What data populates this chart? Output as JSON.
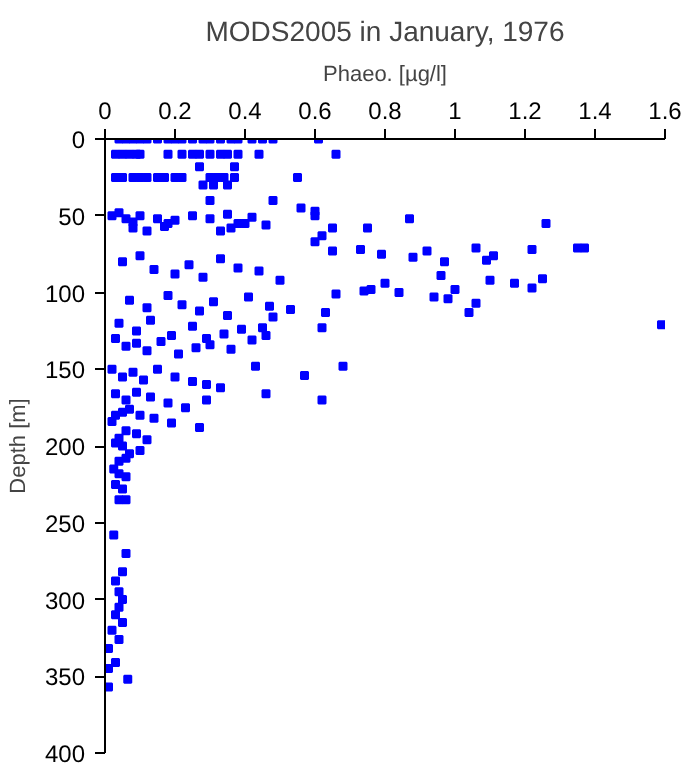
{
  "chart_data": {
    "type": "scatter",
    "title": "MODS2005 in January, 1976",
    "xlabel": "Phaeo. [µg/l]",
    "ylabel": "Depth [m]",
    "xlim": [
      0,
      1.6
    ],
    "xticks": [
      0,
      0.2,
      0.4,
      0.6,
      0.8,
      1,
      1.2,
      1.4,
      1.6
    ],
    "ylim": [
      400,
      0
    ],
    "yticks": [
      0,
      50,
      100,
      150,
      200,
      250,
      300,
      350,
      400
    ],
    "marker": "square",
    "series": [
      {
        "color": "#0000ff",
        "x": [
          0.04,
          0.06,
          0.08,
          0.1,
          0.12,
          0.15,
          0.18,
          0.2,
          0.22,
          0.25,
          0.28,
          0.3,
          0.33,
          0.36,
          0.38,
          0.42,
          0.45,
          0.48,
          0.61,
          0.03,
          0.05,
          0.07,
          0.09,
          0.1,
          0.18,
          0.22,
          0.25,
          0.27,
          0.3,
          0.33,
          0.35,
          0.38,
          0.44,
          0.66,
          0.03,
          0.05,
          0.08,
          0.1,
          0.12,
          0.15,
          0.17,
          0.2,
          0.22,
          0.3,
          0.32,
          0.34,
          0.37,
          0.55,
          0.27,
          0.37,
          0.28,
          0.31,
          0.35,
          0.02,
          0.04,
          0.06,
          0.08,
          0.1,
          0.15,
          0.18,
          0.2,
          0.25,
          0.3,
          0.35,
          0.38,
          0.42,
          0.46,
          0.56,
          0.6,
          0.08,
          0.12,
          0.17,
          0.33,
          0.36,
          0.4,
          0.3,
          0.48,
          0.65,
          0.75,
          0.87,
          1.26,
          0.6,
          0.62,
          0.6,
          0.65,
          0.73,
          0.79,
          0.88,
          0.92,
          0.97,
          1.06,
          1.09,
          1.11,
          1.22,
          1.35,
          1.37,
          0.96,
          0.8,
          0.84,
          1.0,
          1.1,
          1.17,
          1.22,
          1.25,
          0.66,
          0.74,
          0.76,
          0.94,
          0.98,
          1.06,
          1.04,
          1.59,
          0.63,
          0.05,
          0.1,
          0.14,
          0.2,
          0.24,
          0.28,
          0.33,
          0.38,
          0.44,
          0.5,
          0.07,
          0.12,
          0.18,
          0.22,
          0.27,
          0.31,
          0.35,
          0.41,
          0.47,
          0.53,
          0.04,
          0.09,
          0.13,
          0.19,
          0.25,
          0.29,
          0.34,
          0.39,
          0.45,
          0.62,
          0.46,
          0.42,
          0.48,
          0.03,
          0.06,
          0.09,
          0.12,
          0.16,
          0.21,
          0.26,
          0.3,
          0.36,
          0.43,
          0.68,
          0.57,
          0.02,
          0.05,
          0.08,
          0.11,
          0.15,
          0.2,
          0.25,
          0.29,
          0.33,
          0.46,
          0.62,
          0.03,
          0.06,
          0.09,
          0.13,
          0.18,
          0.23,
          0.29,
          0.03,
          0.05,
          0.07,
          0.1,
          0.14,
          0.19,
          0.27,
          0.02,
          0.04,
          0.06,
          0.09,
          0.12,
          0.03,
          0.05,
          0.07,
          0.1,
          0.04,
          0.06,
          0.025,
          0.04,
          0.06,
          0.03,
          0.05,
          0.06,
          0.04,
          0.025,
          0.06,
          0.05,
          0.03,
          0.04,
          0.05,
          0.03,
          0.04,
          0.05,
          0.02,
          0.04,
          0.01,
          0.01,
          0.065,
          0.01,
          0.03
        ],
        "values": [
          0,
          0,
          0,
          0,
          0,
          0,
          0,
          0,
          0,
          0,
          0,
          0,
          0,
          0,
          0,
          0,
          0,
          0,
          0,
          10,
          10,
          10,
          10,
          10,
          10,
          10,
          10,
          10,
          10,
          10,
          10,
          10,
          10,
          10,
          25,
          25,
          25,
          25,
          25,
          25,
          25,
          25,
          25,
          25,
          25,
          25,
          25,
          25,
          18,
          18,
          30,
          30,
          30,
          50,
          48,
          52,
          54,
          50,
          52,
          55,
          53,
          50,
          52,
          49,
          55,
          51,
          56,
          45,
          47,
          58,
          60,
          57,
          60,
          58,
          55,
          40,
          40,
          58,
          58,
          52,
          55,
          50,
          63,
          67,
          73,
          72,
          75,
          77,
          73,
          80,
          71,
          79,
          76,
          72,
          71,
          71,
          89,
          94,
          100,
          98,
          92,
          94,
          97,
          91,
          101,
          99,
          98,
          103,
          104,
          107,
          113,
          121,
          113,
          80,
          76,
          85,
          88,
          82,
          90,
          78,
          84,
          86,
          92,
          105,
          110,
          102,
          108,
          112,
          106,
          115,
          103,
          109,
          111,
          120,
          125,
          118,
          128,
          122,
          130,
          127,
          124,
          123,
          123,
          128,
          131,
          116,
          130,
          135,
          133,
          138,
          132,
          140,
          136,
          134,
          137,
          148,
          148,
          154,
          150,
          155,
          152,
          157,
          150,
          155,
          158,
          160,
          162,
          166,
          170,
          166,
          170,
          165,
          168,
          172,
          175,
          170,
          180,
          178,
          176,
          180,
          182,
          185,
          188,
          184,
          195,
          190,
          192,
          196,
          198,
          200,
          205,
          203,
          210,
          208,
          215,
          218,
          220,
          225,
          228,
          235,
          235,
          258,
          270,
          282,
          288,
          295,
          300,
          310,
          305,
          315,
          320,
          326,
          332,
          345,
          352,
          357,
          341
        ]
      }
    ]
  }
}
